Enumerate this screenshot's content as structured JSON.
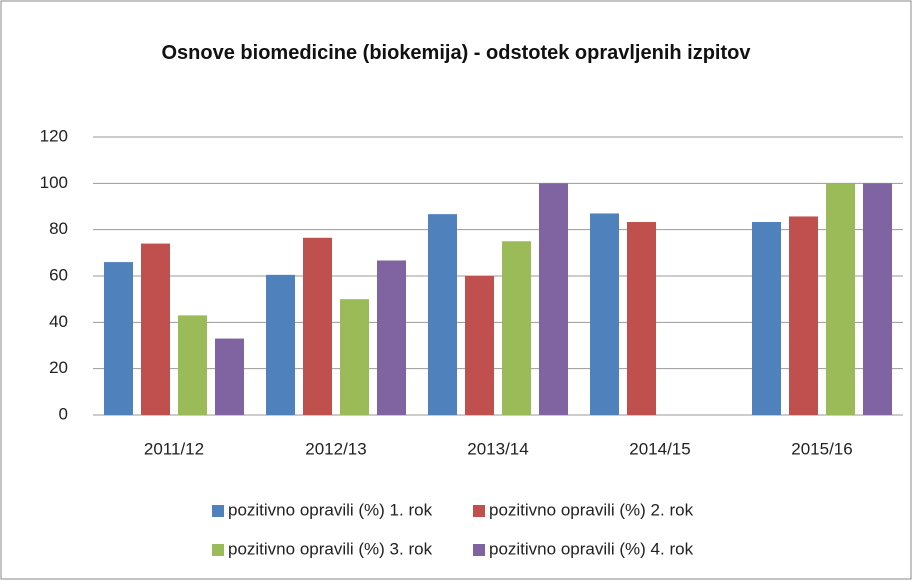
{
  "chart_data": {
    "type": "bar",
    "title": "Osnove biomedicine (biokemija) - odstotek opravljenih izpitov",
    "categories": [
      "2011/12",
      "2012/13",
      "2013/14",
      "2014/15",
      "2015/16"
    ],
    "series": [
      {
        "name": "pozitivno opravili (%) 1. rok",
        "color": "#4f81bd",
        "values": [
          66,
          60.5,
          86.7,
          87,
          83.3
        ]
      },
      {
        "name": "pozitivno opravili (%) 2. rok",
        "color": "#c0504d",
        "values": [
          74,
          76.5,
          60,
          83.3,
          85.7
        ]
      },
      {
        "name": "pozitivno opravili (%) 3. rok",
        "color": "#9bbb59",
        "values": [
          43,
          50,
          75,
          null,
          100
        ]
      },
      {
        "name": "pozitivno opravili (%) 4. rok",
        "color": "#8064a2",
        "values": [
          33,
          66.7,
          100,
          null,
          100
        ]
      }
    ],
    "ylim": [
      0,
      120
    ],
    "yticks": [
      0,
      20,
      40,
      60,
      80,
      100,
      120
    ],
    "grid": true,
    "legend": "bottom"
  }
}
